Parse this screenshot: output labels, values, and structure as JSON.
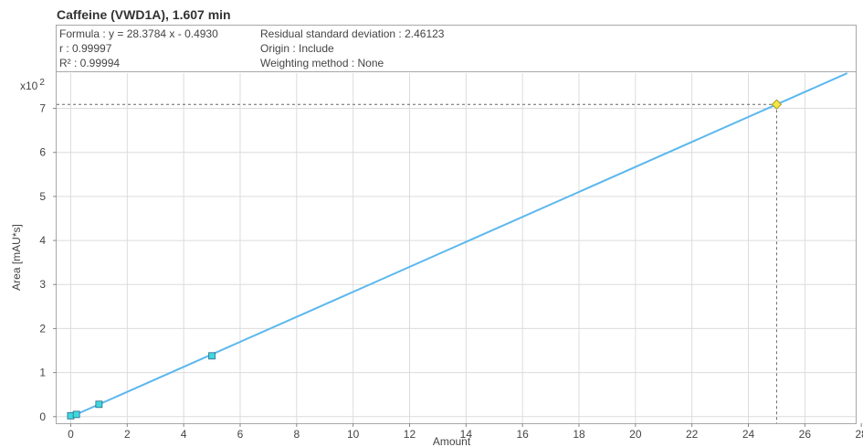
{
  "chart_title": "Caffeine (VWD1A), 1.607 min",
  "stats": {
    "formula": "Formula : y = 28.3784 x - 0.4930",
    "r": "r : 0.99997",
    "r2": "R² : 0.99994",
    "residual": "Residual standard deviation : 2.46123",
    "origin": "Origin : Include",
    "weighting": "Weighting method : None"
  },
  "colors": {
    "line": "#5bb8ee",
    "point": "#3fd7de",
    "point_stroke": "#2a6a8a",
    "highlight": "#f5e642",
    "grid": "#dcdcdc"
  },
  "chart_data": {
    "type": "scatter",
    "title": "Caffeine (VWD1A), 1.607 min",
    "xlabel": "Amount",
    "ylabel": "Area [mAU*s]",
    "y_multiplier_label": "x10 2",
    "xlim": [
      -0.5,
      27.8
    ],
    "ylim": [
      -0.15,
      7.8
    ],
    "x_ticks": [
      0,
      2,
      4,
      6,
      8,
      10,
      12,
      14,
      16,
      18,
      20,
      22,
      24,
      26,
      28
    ],
    "y_ticks": [
      0,
      1,
      2,
      3,
      4,
      5,
      6,
      7
    ],
    "grid": true,
    "fit_line": {
      "slope": 0.283784,
      "intercept": -0.00493,
      "x_range": [
        0.0,
        27.5
      ]
    },
    "calibration_points": [
      {
        "x": 0.0,
        "y": 0.02
      },
      {
        "x": 0.2,
        "y": 0.05
      },
      {
        "x": 1.0,
        "y": 0.28
      },
      {
        "x": 5.0,
        "y": 1.38
      }
    ],
    "sample_point": {
      "x": 25.0,
      "y": 7.09
    }
  }
}
